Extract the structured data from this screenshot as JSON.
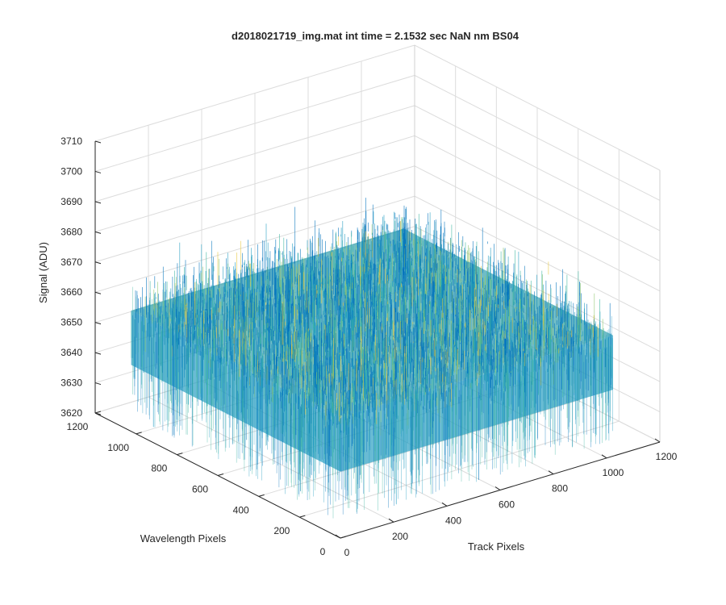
{
  "chart_data": {
    "type": "surface",
    "title": "d2018021719_img.mat int time = 2.1532 sec  NaN nm BS04",
    "xlabel": "Track Pixels",
    "ylabel": "Wavelength Pixels",
    "zlabel": "Signal (ADU)",
    "xlim": [
      0,
      1200
    ],
    "ylim": [
      0,
      1200
    ],
    "zlim": [
      3620,
      3710
    ],
    "xticks": [
      "0",
      "200",
      "400",
      "600",
      "800",
      "1000",
      "1200"
    ],
    "yticks": [
      "0",
      "200",
      "400",
      "600",
      "800",
      "1000",
      "1200"
    ],
    "zticks": [
      "3620",
      "3630",
      "3640",
      "3650",
      "3660",
      "3670",
      "3680",
      "3690",
      "3700",
      "3710"
    ],
    "data_extent": {
      "x": [
        1,
        1024
      ],
      "y": [
        1,
        1024
      ]
    },
    "signal_mean": 3660,
    "signal_range": [
      3635,
      3690
    ],
    "grid": true,
    "colormap": [
      "#0072BD",
      "#1E9BC0",
      "#3BB5A0",
      "#8CC66E",
      "#E6C63B"
    ]
  }
}
